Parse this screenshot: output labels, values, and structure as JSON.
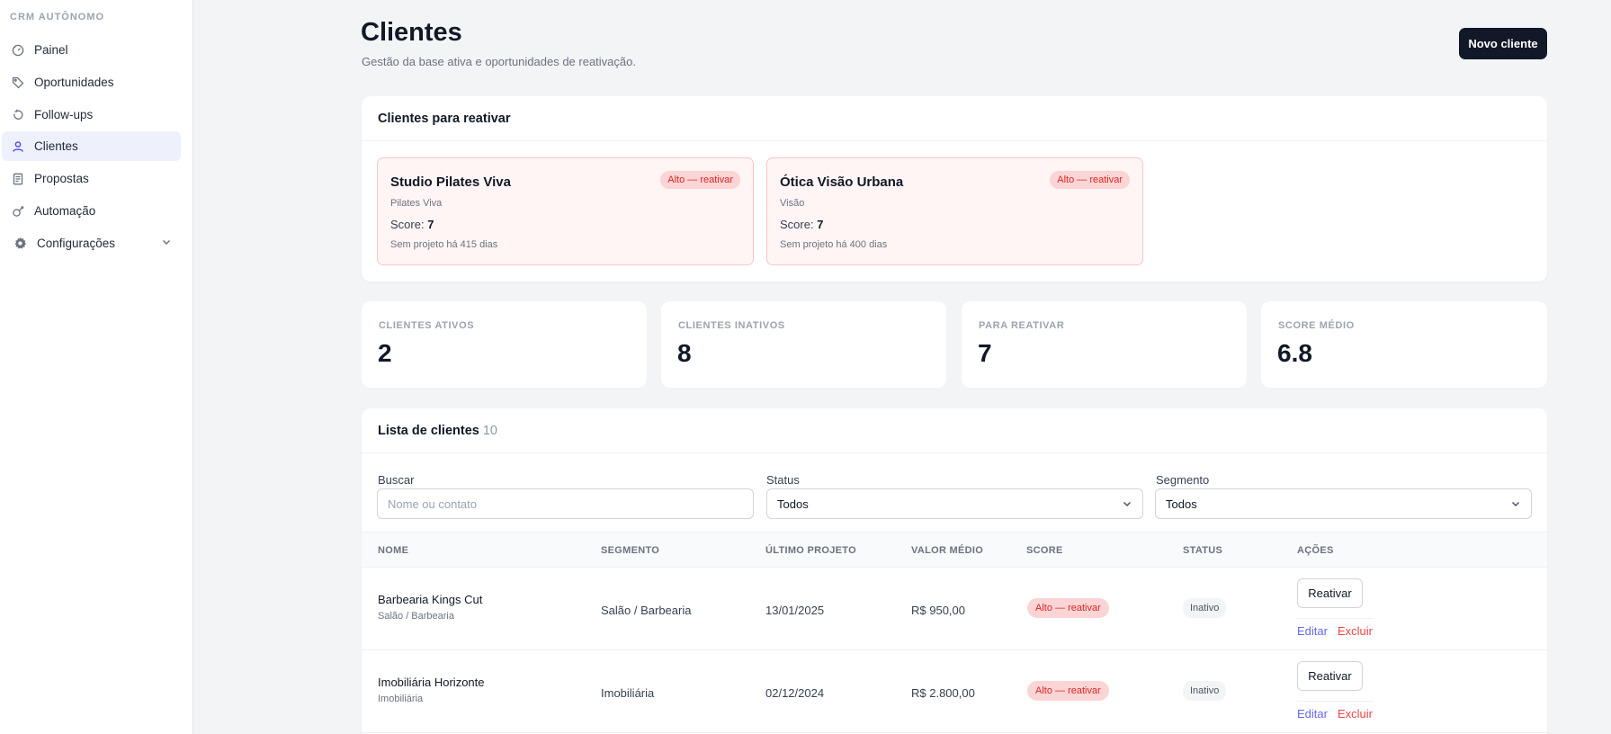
{
  "sidebar": {
    "brand": "CRM AUTÔNOMO",
    "items": [
      {
        "label": "Painel",
        "icon": "gauge-icon"
      },
      {
        "label": "Oportunidades",
        "icon": "tag-icon"
      },
      {
        "label": "Follow-ups",
        "icon": "refresh-icon"
      },
      {
        "label": "Clientes",
        "icon": "user-icon"
      },
      {
        "label": "Propostas",
        "icon": "document-icon"
      },
      {
        "label": "Automação",
        "icon": "automation-icon"
      },
      {
        "label": "Configurações",
        "icon": "gear-icon"
      }
    ],
    "active": "Clientes"
  },
  "header": {
    "title": "Clientes",
    "subtitle": "Gestão da base ativa e oportunidades de reativação.",
    "new_button": "Novo cliente"
  },
  "reactivate": {
    "title": "Clientes para reativar",
    "cards": [
      {
        "name": "Studio Pilates Viva",
        "badge": "Alto — reativar",
        "sub": "Pilates Viva",
        "score_label": "Score:",
        "score": "7",
        "days": "Sem projeto há 415 dias"
      },
      {
        "name": "Ótica Visão Urbana",
        "badge": "Alto — reativar",
        "sub": "Visão",
        "score_label": "Score:",
        "score": "7",
        "days": "Sem projeto há 400 dias"
      }
    ]
  },
  "stats": [
    {
      "label": "CLIENTES ATIVOS",
      "value": "2"
    },
    {
      "label": "CLIENTES INATIVOS",
      "value": "8"
    },
    {
      "label": "PARA REATIVAR",
      "value": "7"
    },
    {
      "label": "SCORE MÉDIO",
      "value": "6.8"
    }
  ],
  "list": {
    "title": "Lista de clientes",
    "count": "10",
    "filters": {
      "search_label": "Buscar",
      "search_placeholder": "Nome ou contato",
      "status_label": "Status",
      "status_value": "Todos",
      "segment_label": "Segmento",
      "segment_value": "Todos"
    },
    "columns": [
      "NOME",
      "SEGMENTO",
      "ÚLTIMO PROJETO",
      "VALOR MÉDIO",
      "SCORE",
      "STATUS",
      "AÇÕES"
    ],
    "rows": [
      {
        "name": "Barbearia Kings Cut",
        "name_sub": "Salão / Barbearia",
        "segment": "Salão / Barbearia",
        "last_project": "13/01/2025",
        "avg_value": "R$ 950,00",
        "score": "Alto — reativar",
        "status": "Inativo",
        "action": "Reativar",
        "edit": "Editar",
        "delete": "Excluir"
      },
      {
        "name": "Imobiliária Horizonte",
        "name_sub": "Imobiliária",
        "segment": "Imobiliária",
        "last_project": "02/12/2024",
        "avg_value": "R$ 2.800,00",
        "score": "Alto — reativar",
        "status": "Inativo",
        "action": "Reativar",
        "edit": "Editar",
        "delete": "Excluir"
      }
    ]
  },
  "colors": {
    "accent": "#4f46e5",
    "primary_button": "#111827",
    "danger": "#dc2626",
    "danger_bg": "#fbd5d5"
  }
}
